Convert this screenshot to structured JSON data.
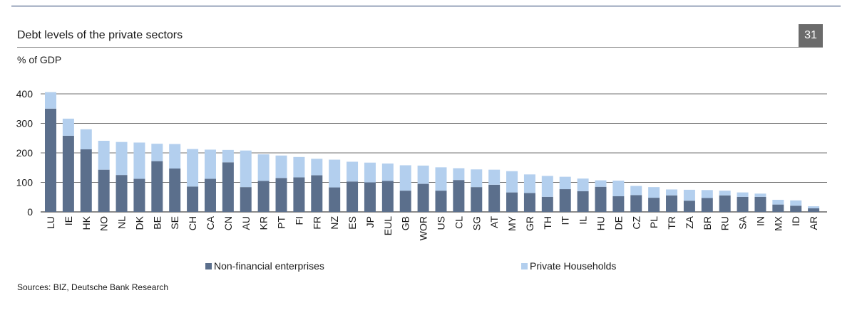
{
  "page": {
    "title": "Debt levels of the private sectors",
    "page_number": "31",
    "unit_label": "% of GDP",
    "source": "Sources: BIZ, Deutsche Bank Research"
  },
  "colors": {
    "non_financial": "#5b6f8c",
    "households": "#b3cfee",
    "grid": "#444444",
    "rule": "#1f3a6b"
  },
  "chart_data": {
    "type": "bar",
    "stacked": true,
    "title": "Debt levels of the private sectors",
    "ylabel": "% of GDP",
    "ylim": [
      0,
      400
    ],
    "yticks": [
      0,
      100,
      200,
      300,
      400
    ],
    "grid": true,
    "legend_position": "bottom",
    "categories": [
      "LU",
      "IE",
      "HK",
      "NO",
      "NL",
      "DK",
      "BE",
      "SE",
      "CH",
      "CA",
      "CN",
      "AU",
      "KR",
      "PT",
      "FI",
      "FR",
      "NZ",
      "ES",
      "JP",
      "EUL",
      "GB",
      "WOR",
      "US",
      "CL",
      "SG",
      "AT",
      "MY",
      "GR",
      "TH",
      "IT",
      "IL",
      "HU",
      "DE",
      "CZ",
      "PL",
      "TR",
      "ZA",
      "BR",
      "RU",
      "SA",
      "IN",
      "MX",
      "ID",
      "AR"
    ],
    "series": [
      {
        "name": "Non-financial enterprises",
        "values": [
          350,
          258,
          212,
          143,
          125,
          112,
          172,
          147,
          86,
          112,
          168,
          84,
          105,
          115,
          117,
          124,
          83,
          103,
          100,
          105,
          72,
          95,
          72,
          108,
          84,
          92,
          66,
          64,
          51,
          77,
          70,
          85,
          53,
          57,
          48,
          56,
          38,
          47,
          56,
          51,
          51,
          25,
          21,
          12
        ],
        "totals": [
          406,
          316,
          280,
          241,
          237,
          235,
          231,
          230,
          213,
          211,
          210,
          208,
          195,
          191,
          186,
          180,
          177,
          170,
          167,
          164,
          158,
          157,
          151,
          148,
          144,
          143,
          138,
          127,
          122,
          119,
          113,
          107,
          106,
          88,
          84,
          76,
          75,
          74,
          72,
          66,
          62,
          41,
          39,
          19
        ]
      },
      {
        "name": "Private Households",
        "values": [
          56,
          58,
          68,
          98,
          112,
          123,
          59,
          83,
          127,
          99,
          42,
          124,
          90,
          76,
          69,
          56,
          94,
          67,
          67,
          59,
          86,
          62,
          79,
          40,
          60,
          51,
          72,
          63,
          71,
          42,
          43,
          22,
          53,
          31,
          36,
          20,
          37,
          27,
          16,
          15,
          11,
          16,
          18,
          7
        ]
      }
    ]
  }
}
